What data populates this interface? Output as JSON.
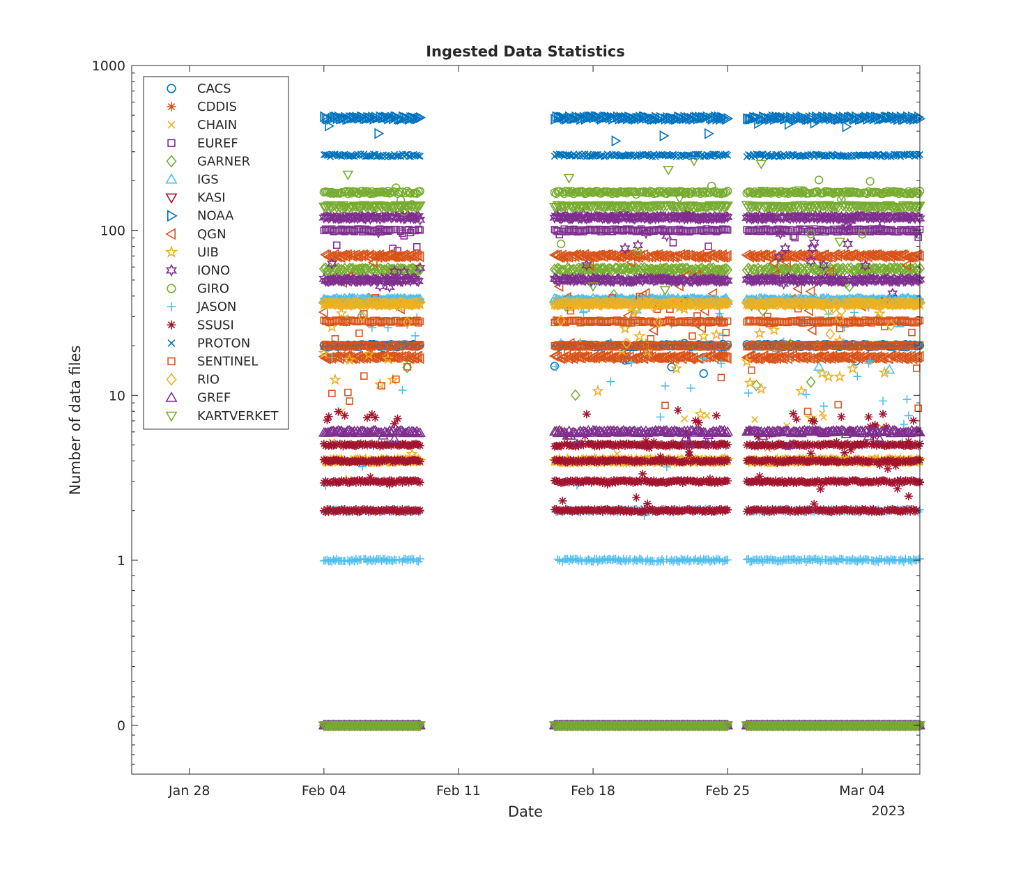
{
  "chart_data": {
    "type": "scatter",
    "title": "Ingested Data Statistics",
    "xlabel": "Date",
    "ylabel": "Number of data files",
    "x_scale": "time",
    "y_scale": "log (with 0 shown below 0.1 on a separate band)",
    "x_ticks": [
      "Jan 28",
      "Feb 04",
      "Feb 11",
      "Feb 18",
      "Feb 25",
      "Mar 04"
    ],
    "x_tick_dates": [
      "2023-01-28",
      "2023-02-04",
      "2023-02-11",
      "2023-02-18",
      "2023-02-25",
      "2023-03-04"
    ],
    "x_year_label": "2023",
    "xlim": [
      "2023-01-25",
      "2023-03-07"
    ],
    "y_ticks": [
      "0",
      "1",
      "10",
      "100",
      "1000"
    ],
    "y_tick_values": [
      0,
      1,
      10,
      100,
      1000
    ],
    "ylim": [
      0,
      1000
    ],
    "legend_position": "top-left",
    "grid": false,
    "date_segments": [
      [
        "2023-02-04",
        "2023-02-09"
      ],
      [
        "2023-02-16",
        "2023-02-25"
      ],
      [
        "2023-02-26",
        "2023-03-07"
      ]
    ],
    "series": [
      {
        "name": "CACS",
        "marker": "circle",
        "color": "#0072BD",
        "typical_values": [
          20,
          0
        ],
        "scatter_range": [
          13,
          21
        ]
      },
      {
        "name": "CDDIS",
        "marker": "asterisk",
        "color": "#D95319",
        "typical_values": [
          0
        ],
        "scatter_range": [
          0,
          0
        ]
      },
      {
        "name": "CHAIN",
        "marker": "x",
        "color": "#EDB120",
        "typical_values": [
          4,
          0
        ],
        "scatter_range": [
          4,
          8
        ]
      },
      {
        "name": "EUREF",
        "marker": "square",
        "color": "#7E2F8E",
        "typical_values": [
          100,
          0
        ],
        "scatter_range": [
          75,
          100
        ]
      },
      {
        "name": "GARNER",
        "marker": "diamond",
        "color": "#77AC30",
        "typical_values": [
          58,
          0
        ],
        "scatter_range": [
          9,
          60
        ]
      },
      {
        "name": "IGS",
        "marker": "triangle-up",
        "color": "#4DBEEE",
        "typical_values": [
          38,
          0
        ],
        "scatter_range": [
          12,
          38
        ]
      },
      {
        "name": "KASI",
        "marker": "triangle-down",
        "color": "#A2142F",
        "typical_values": [
          0
        ],
        "scatter_range": [
          0,
          0
        ]
      },
      {
        "name": "NOAA",
        "marker": "triangle-right",
        "color": "#0072BD",
        "typical_values": [
          480
        ],
        "scatter_range": [
          350,
          500
        ]
      },
      {
        "name": "QGN",
        "marker": "triangle-left",
        "color": "#D95319",
        "typical_values": [
          70,
          17
        ],
        "scatter_range": [
          17,
          70
        ]
      },
      {
        "name": "UIB",
        "marker": "star5",
        "color": "#EDB120",
        "typical_values": [
          4,
          36
        ],
        "scatter_range": [
          3,
          36
        ]
      },
      {
        "name": "IONO",
        "marker": "star6",
        "color": "#7E2F8E",
        "typical_values": [
          120,
          50
        ],
        "scatter_range": [
          40,
          130
        ]
      },
      {
        "name": "GIRO",
        "marker": "circle",
        "color": "#77AC30",
        "typical_values": [
          170
        ],
        "scatter_range": [
          60,
          210
        ]
      },
      {
        "name": "JASON",
        "marker": "plus",
        "color": "#4DBEEE",
        "typical_values": [
          2,
          1,
          38
        ],
        "scatter_range": [
          1,
          38
        ]
      },
      {
        "name": "SSUSI",
        "marker": "asterisk",
        "color": "#A2142F",
        "typical_values": [
          5,
          4,
          3,
          2
        ],
        "scatter_range": [
          2,
          8
        ]
      },
      {
        "name": "PROTON",
        "marker": "x",
        "color": "#0072BD",
        "typical_values": [
          285
        ],
        "scatter_range": [
          285,
          285
        ]
      },
      {
        "name": "SENTINEL",
        "marker": "square",
        "color": "#D95319",
        "typical_values": [
          28,
          20
        ],
        "scatter_range": [
          8,
          40
        ]
      },
      {
        "name": "RIO",
        "marker": "diamond",
        "color": "#EDB120",
        "typical_values": [
          36
        ],
        "scatter_range": [
          20,
          36
        ]
      },
      {
        "name": "GREF",
        "marker": "triangle-up",
        "color": "#7E2F8E",
        "typical_values": [
          6,
          0
        ],
        "scatter_range": [
          5,
          6
        ]
      },
      {
        "name": "KARTVERKET",
        "marker": "triangle-down",
        "color": "#77AC30",
        "typical_values": [
          0,
          140
        ],
        "scatter_range": [
          30,
          280
        ]
      }
    ]
  }
}
